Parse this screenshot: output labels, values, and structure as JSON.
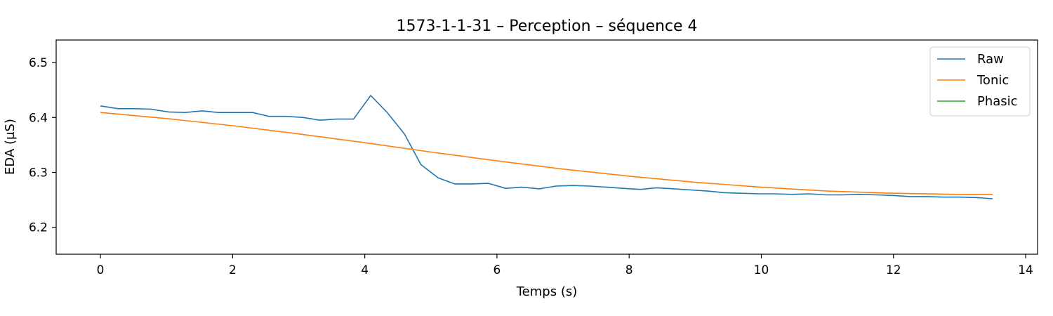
{
  "chart_data": {
    "type": "line",
    "title": "1573-1-1-31 – Perception – séquence 4",
    "xlabel": "Temps (s)",
    "ylabel": "EDA (µS)",
    "xlim": [
      -0.67,
      14.18
    ],
    "ylim": [
      6.151,
      6.541
    ],
    "xticks": [
      0,
      2,
      4,
      6,
      8,
      10,
      12,
      14
    ],
    "yticks": [
      6.2,
      6.3,
      6.4,
      6.5
    ],
    "xtick_labels": [
      "0",
      "2",
      "4",
      "6",
      "8",
      "10",
      "12",
      "14"
    ],
    "ytick_labels": [
      "6.2",
      "6.3",
      "6.4",
      "6.5"
    ],
    "grid": false,
    "legend_position": "top-right",
    "series": [
      {
        "name": "Raw",
        "color": "#1f77b4",
        "x": [
          0,
          0.27,
          0.54,
          0.77,
          1.03,
          1.28,
          1.54,
          1.78,
          2.05,
          2.3,
          2.55,
          2.81,
          3.07,
          3.32,
          3.57,
          3.83,
          4.09,
          4.34,
          4.6,
          4.85,
          5.11,
          5.36,
          5.62,
          5.87,
          6.13,
          6.38,
          6.64,
          6.89,
          7.15,
          7.4,
          7.66,
          7.91,
          8.17,
          8.42,
          8.68,
          8.93,
          9.19,
          9.44,
          9.7,
          9.95,
          10.21,
          10.46,
          10.72,
          10.97,
          11.23,
          11.48,
          11.74,
          11.99,
          12.25,
          12.5,
          12.76,
          13.01,
          13.27,
          13.5
        ],
        "y": [
          6.421,
          6.416,
          6.416,
          6.415,
          6.41,
          6.409,
          6.412,
          6.409,
          6.409,
          6.409,
          6.402,
          6.402,
          6.4,
          6.395,
          6.397,
          6.397,
          6.44,
          6.409,
          6.37,
          6.314,
          6.29,
          6.279,
          6.279,
          6.28,
          6.271,
          6.273,
          6.27,
          6.275,
          6.276,
          6.275,
          6.273,
          6.271,
          6.269,
          6.272,
          6.27,
          6.268,
          6.266,
          6.263,
          6.262,
          6.261,
          6.261,
          6.26,
          6.261,
          6.259,
          6.259,
          6.26,
          6.259,
          6.258,
          6.256,
          6.256,
          6.255,
          6.255,
          6.254,
          6.252
        ]
      },
      {
        "name": "Tonic",
        "color": "#ff7f0e",
        "x": [
          0,
          1,
          2,
          3,
          4,
          5,
          6,
          7,
          8,
          9,
          10,
          11,
          12,
          13,
          13.5
        ],
        "y": [
          6.409,
          6.398,
          6.385,
          6.37,
          6.354,
          6.337,
          6.321,
          6.306,
          6.293,
          6.282,
          6.273,
          6.266,
          6.262,
          6.26,
          6.26
        ]
      },
      {
        "name": "Phasic",
        "color": "#2ca02c",
        "x": [],
        "y": []
      }
    ]
  }
}
